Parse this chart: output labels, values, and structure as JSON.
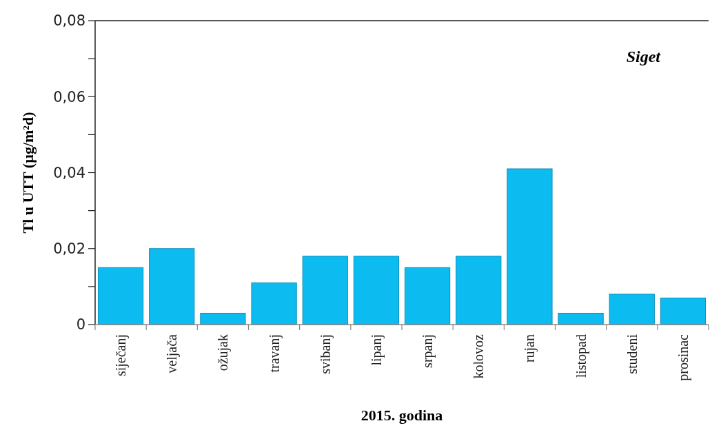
{
  "chart_data": {
    "type": "bar",
    "xlabel": "2015. godina",
    "ylabel": "Tl u UTT  (µg/m²d)",
    "annotations": [
      "Siget"
    ],
    "categories": [
      "siječanj",
      "veljača",
      "ožujak",
      "travanj",
      "svibanj",
      "lipanj",
      "srpanj",
      "kolovoz",
      "rujan",
      "listopad",
      "studeni",
      "prosinac"
    ],
    "values": [
      0.015,
      0.02,
      0.003,
      0.011,
      0.018,
      0.018,
      0.015,
      0.018,
      0.041,
      0.003,
      0.008,
      0.007
    ],
    "color": "#0cbcf0",
    "ylim": [
      0,
      0.08
    ],
    "yticks": [
      0,
      {
        "value": 0.01,
        "label": null
      },
      {
        "value": 0.02,
        "label": "0,02"
      },
      {
        "value": 0.03,
        "label": null
      },
      {
        "value": 0.04,
        "label": "0,04"
      },
      {
        "value": 0.05,
        "label": null
      },
      {
        "value": 0.06,
        "label": "0,06"
      },
      {
        "value": 0.07,
        "label": null
      },
      {
        "value": 0.08,
        "label": "0,08"
      }
    ]
  }
}
